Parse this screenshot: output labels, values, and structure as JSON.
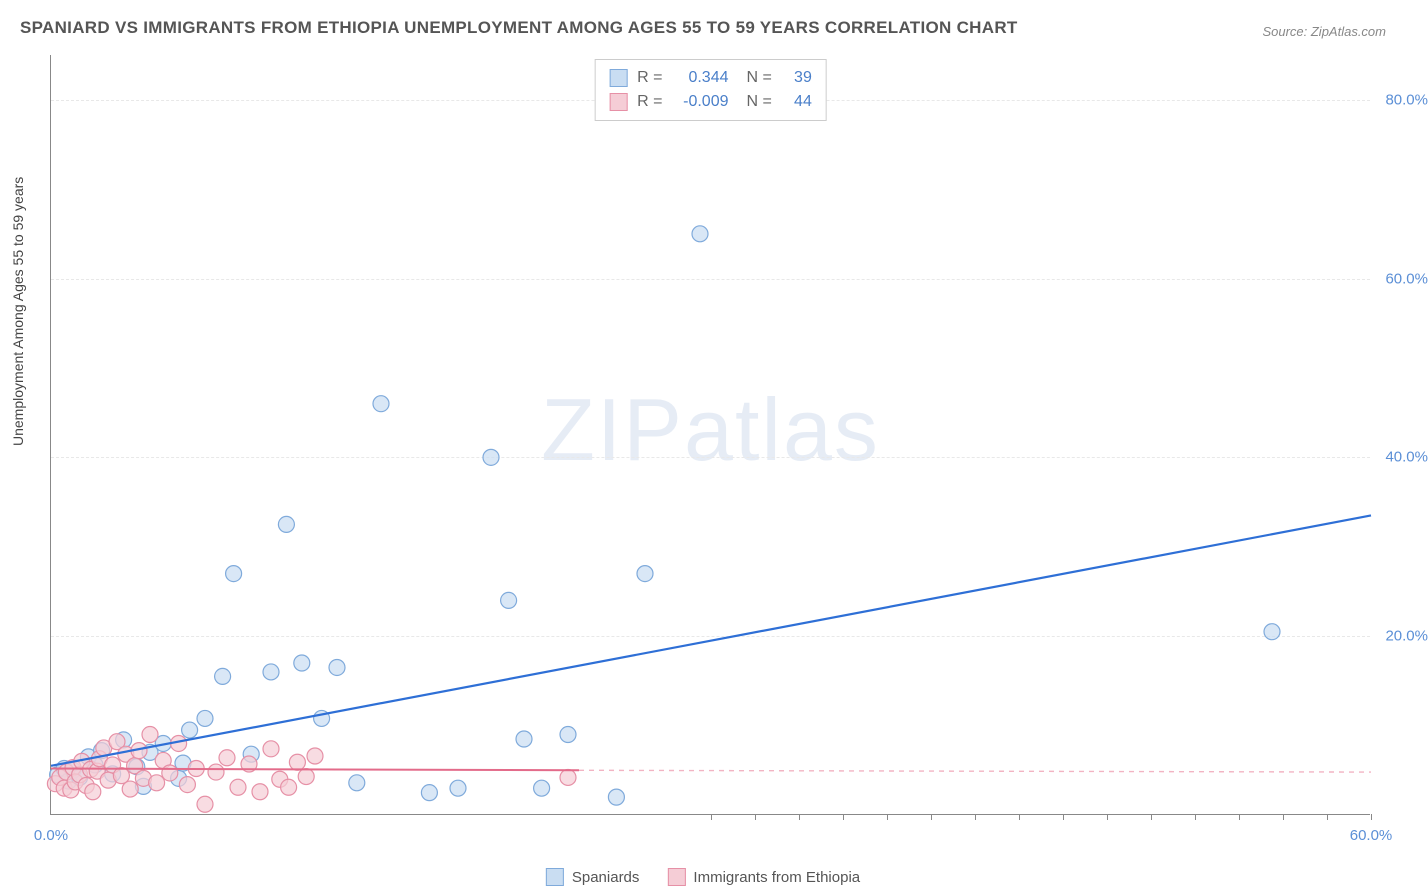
{
  "title": "SPANIARD VS IMMIGRANTS FROM ETHIOPIA UNEMPLOYMENT AMONG AGES 55 TO 59 YEARS CORRELATION CHART",
  "source_label": "Source: ",
  "source_value": "ZipAtlas.com",
  "watermark": {
    "zip": "ZIP",
    "atlas": "atlas"
  },
  "y_axis_label": "Unemployment Among Ages 55 to 59 years",
  "chart": {
    "type": "scatter",
    "background_color": "#ffffff",
    "grid_color": "#e8e8e8",
    "axis_color": "#888888",
    "xlim": [
      0,
      60
    ],
    "ylim": [
      0,
      85
    ],
    "x_ticks": [
      {
        "pos": 0,
        "label": "0.0%"
      },
      {
        "pos": 60,
        "label": "60.0%"
      }
    ],
    "x_minor_ticks": [
      30,
      32,
      34,
      36,
      38,
      40,
      42,
      44,
      46,
      48,
      50,
      52,
      54,
      56,
      58,
      60
    ],
    "y_ticks": [
      {
        "pos": 20,
        "label": "20.0%"
      },
      {
        "pos": 40,
        "label": "40.0%"
      },
      {
        "pos": 60,
        "label": "60.0%"
      },
      {
        "pos": 80,
        "label": "80.0%"
      }
    ],
    "marker_radius": 8,
    "marker_stroke_width": 1.2,
    "series": [
      {
        "id": "spaniards",
        "label": "Spaniards",
        "fill": "#c9ddf2",
        "stroke": "#7faadb",
        "fill_opacity": 0.7,
        "r": 0.344,
        "n": 39,
        "trend": {
          "x1": 0,
          "y1": 5.5,
          "x2": 60,
          "y2": 33.5,
          "color": "#2e6fd6",
          "width": 2.2,
          "dash": ""
        },
        "points": [
          [
            0.3,
            4.5
          ],
          [
            0.6,
            5.2
          ],
          [
            0.8,
            3.8
          ],
          [
            1.0,
            5.0
          ],
          [
            1.3,
            4.2
          ],
          [
            1.7,
            6.5
          ],
          [
            2.0,
            5.6
          ],
          [
            2.3,
            7.2
          ],
          [
            2.8,
            4.6
          ],
          [
            3.3,
            8.4
          ],
          [
            3.9,
            5.4
          ],
          [
            4.5,
            7.0
          ],
          [
            5.1,
            8.0
          ],
          [
            5.8,
            4.1
          ],
          [
            6.3,
            9.5
          ],
          [
            7.0,
            10.8
          ],
          [
            7.8,
            15.5
          ],
          [
            8.3,
            27.0
          ],
          [
            9.1,
            6.8
          ],
          [
            10.0,
            16.0
          ],
          [
            10.7,
            32.5
          ],
          [
            11.4,
            17.0
          ],
          [
            12.3,
            10.8
          ],
          [
            13.0,
            16.5
          ],
          [
            13.9,
            3.6
          ],
          [
            15.0,
            46.0
          ],
          [
            17.2,
            2.5
          ],
          [
            18.5,
            3.0
          ],
          [
            20.0,
            40.0
          ],
          [
            20.8,
            24.0
          ],
          [
            21.5,
            8.5
          ],
          [
            22.3,
            3.0
          ],
          [
            23.5,
            9.0
          ],
          [
            25.7,
            2.0
          ],
          [
            27.0,
            27.0
          ],
          [
            29.5,
            65.0
          ],
          [
            55.5,
            20.5
          ],
          [
            4.2,
            3.2
          ],
          [
            6.0,
            5.8
          ]
        ]
      },
      {
        "id": "ethiopia",
        "label": "Immigrants from Ethiopia",
        "fill": "#f5cdd6",
        "stroke": "#e690a6",
        "fill_opacity": 0.7,
        "r": -0.009,
        "n": 44,
        "trend": {
          "x1": 0,
          "y1": 5.2,
          "x2": 24,
          "y2": 5.0,
          "color": "#e36b8a",
          "width": 2.0,
          "dash": ""
        },
        "trend_ext": {
          "x1": 24,
          "y1": 5.0,
          "x2": 60,
          "y2": 4.8,
          "color": "#f2b4c3",
          "width": 1.4,
          "dash": "5,5"
        },
        "points": [
          [
            0.2,
            3.5
          ],
          [
            0.4,
            4.2
          ],
          [
            0.6,
            3.0
          ],
          [
            0.7,
            4.8
          ],
          [
            0.9,
            2.8
          ],
          [
            1.0,
            5.3
          ],
          [
            1.1,
            3.7
          ],
          [
            1.3,
            4.5
          ],
          [
            1.4,
            6.0
          ],
          [
            1.6,
            3.3
          ],
          [
            1.8,
            5.1
          ],
          [
            1.9,
            2.6
          ],
          [
            2.1,
            4.9
          ],
          [
            2.2,
            6.3
          ],
          [
            2.4,
            7.5
          ],
          [
            2.6,
            3.9
          ],
          [
            2.8,
            5.6
          ],
          [
            3.0,
            8.2
          ],
          [
            3.2,
            4.4
          ],
          [
            3.4,
            6.8
          ],
          [
            3.6,
            2.9
          ],
          [
            3.8,
            5.5
          ],
          [
            4.0,
            7.2
          ],
          [
            4.2,
            4.1
          ],
          [
            4.5,
            9.0
          ],
          [
            4.8,
            3.6
          ],
          [
            5.1,
            6.1
          ],
          [
            5.4,
            4.7
          ],
          [
            5.8,
            8.0
          ],
          [
            6.2,
            3.4
          ],
          [
            6.6,
            5.2
          ],
          [
            7.0,
            1.2
          ],
          [
            7.5,
            4.8
          ],
          [
            8.0,
            6.4
          ],
          [
            8.5,
            3.1
          ],
          [
            9.0,
            5.7
          ],
          [
            9.5,
            2.6
          ],
          [
            10.0,
            7.4
          ],
          [
            10.4,
            4.0
          ],
          [
            10.8,
            3.1
          ],
          [
            11.2,
            5.9
          ],
          [
            11.6,
            4.3
          ],
          [
            12.0,
            6.6
          ],
          [
            23.5,
            4.2
          ]
        ]
      }
    ]
  },
  "stats_box": {
    "r_label": "R =",
    "n_label": "N ="
  },
  "colors": {
    "title_text": "#555555",
    "tick_text": "#5b8fd6"
  }
}
